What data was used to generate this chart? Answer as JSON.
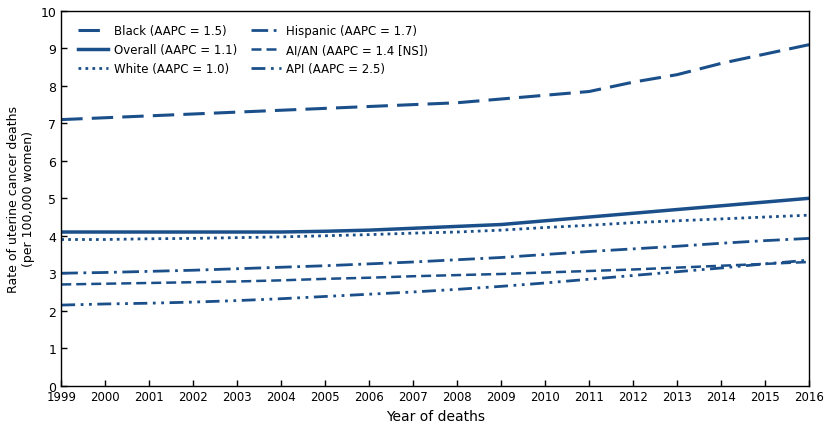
{
  "years": [
    1999,
    2000,
    2001,
    2002,
    2003,
    2004,
    2005,
    2006,
    2007,
    2008,
    2009,
    2010,
    2011,
    2012,
    2013,
    2014,
    2015,
    2016
  ],
  "Black": [
    7.1,
    7.15,
    7.2,
    7.25,
    7.3,
    7.35,
    7.4,
    7.45,
    7.5,
    7.55,
    7.65,
    7.75,
    7.85,
    8.1,
    8.3,
    8.6,
    8.85,
    9.1
  ],
  "Overall": [
    4.1,
    4.1,
    4.1,
    4.1,
    4.1,
    4.1,
    4.12,
    4.15,
    4.2,
    4.25,
    4.3,
    4.4,
    4.5,
    4.6,
    4.7,
    4.8,
    4.9,
    5.0
  ],
  "White": [
    3.9,
    3.9,
    3.92,
    3.93,
    3.95,
    3.97,
    4.0,
    4.03,
    4.07,
    4.1,
    4.15,
    4.22,
    4.28,
    4.35,
    4.4,
    4.45,
    4.5,
    4.55
  ],
  "Hispanic": [
    3.0,
    3.02,
    3.05,
    3.08,
    3.12,
    3.16,
    3.2,
    3.25,
    3.3,
    3.36,
    3.42,
    3.5,
    3.58,
    3.65,
    3.72,
    3.8,
    3.87,
    3.93
  ],
  "AIAN": [
    2.7,
    2.72,
    2.74,
    2.76,
    2.78,
    2.81,
    2.85,
    2.88,
    2.92,
    2.95,
    2.98,
    3.02,
    3.06,
    3.1,
    3.15,
    3.2,
    3.25,
    3.3
  ],
  "API": [
    2.15,
    2.18,
    2.2,
    2.23,
    2.27,
    2.32,
    2.38,
    2.44,
    2.5,
    2.57,
    2.65,
    2.74,
    2.84,
    2.94,
    3.04,
    3.14,
    3.25,
    3.35
  ],
  "color": "#1a4f8a",
  "xlabel": "Year of deaths",
  "ylabel": "Rate of uterine cancer deaths\n(per 100,000 women)",
  "ylim": [
    0,
    10
  ],
  "legend_Black": "Black (AAPC = 1.5)",
  "legend_Overall": "Overall (AAPC = 1.1)",
  "legend_White": "White (AAPC = 1.0)",
  "legend_Hispanic": "Hispanic (AAPC = 1.7)",
  "legend_AIAN": "AI/AN (AAPC = 1.4 [NS])",
  "legend_API": "API (AAPC = 2.5)"
}
